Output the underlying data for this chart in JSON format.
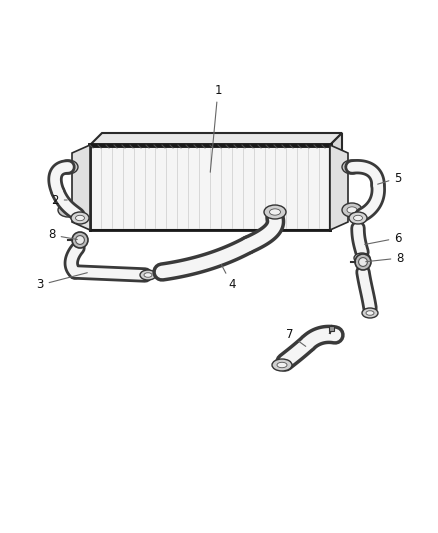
{
  "background_color": "#ffffff",
  "line_color": "#2a2a2a",
  "figure_width": 4.38,
  "figure_height": 5.33,
  "dpi": 100,
  "pipe_outer_color": "#3a3a3a",
  "pipe_inner_color": "#f5f5f5",
  "pipe_mid_color": "#d0d0d0",
  "cooler_face_color": "#f8f8f8",
  "cooler_edge_color": "#1a1a1a",
  "label_fontsize": 8.5,
  "label_color": "#111111"
}
